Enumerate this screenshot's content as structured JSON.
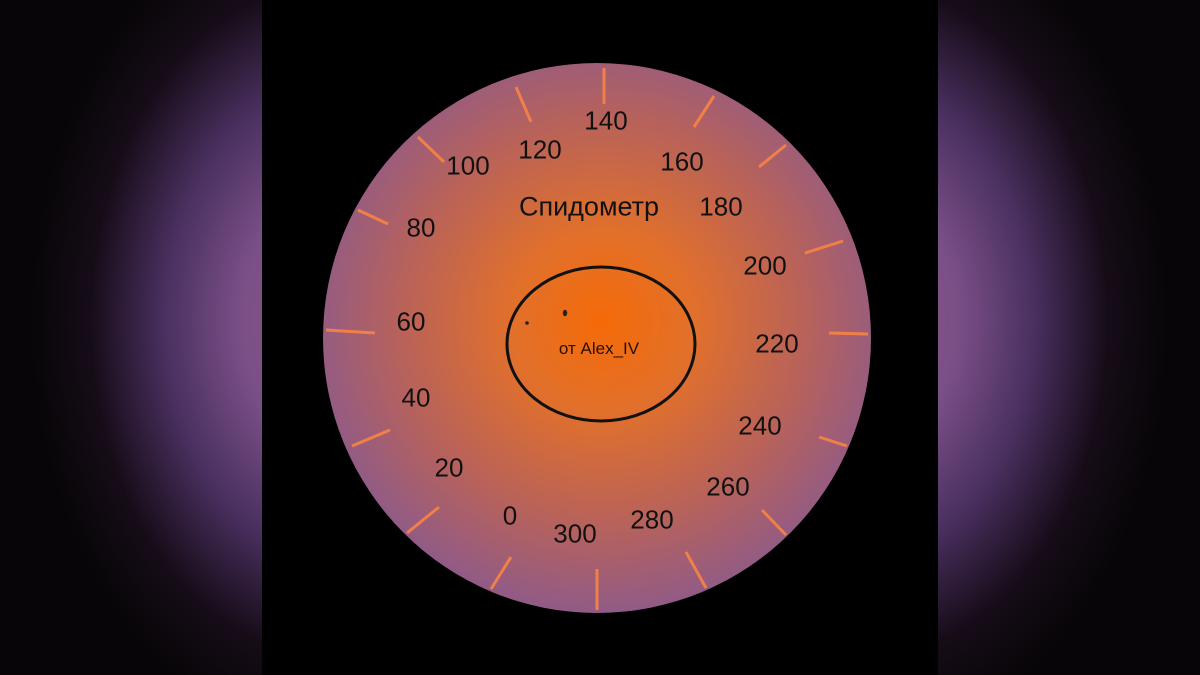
{
  "gauge": {
    "title": "Спидометр",
    "credit": "от Alex_IV",
    "labels": [
      "0",
      "20",
      "40",
      "60",
      "80",
      "100",
      "120",
      "140",
      "160",
      "180",
      "200",
      "220",
      "240",
      "260",
      "280",
      "300"
    ],
    "colors": {
      "center": "#f56a08",
      "edge": "#7556b6",
      "ticks": "#f08048",
      "background": "#000000"
    }
  }
}
